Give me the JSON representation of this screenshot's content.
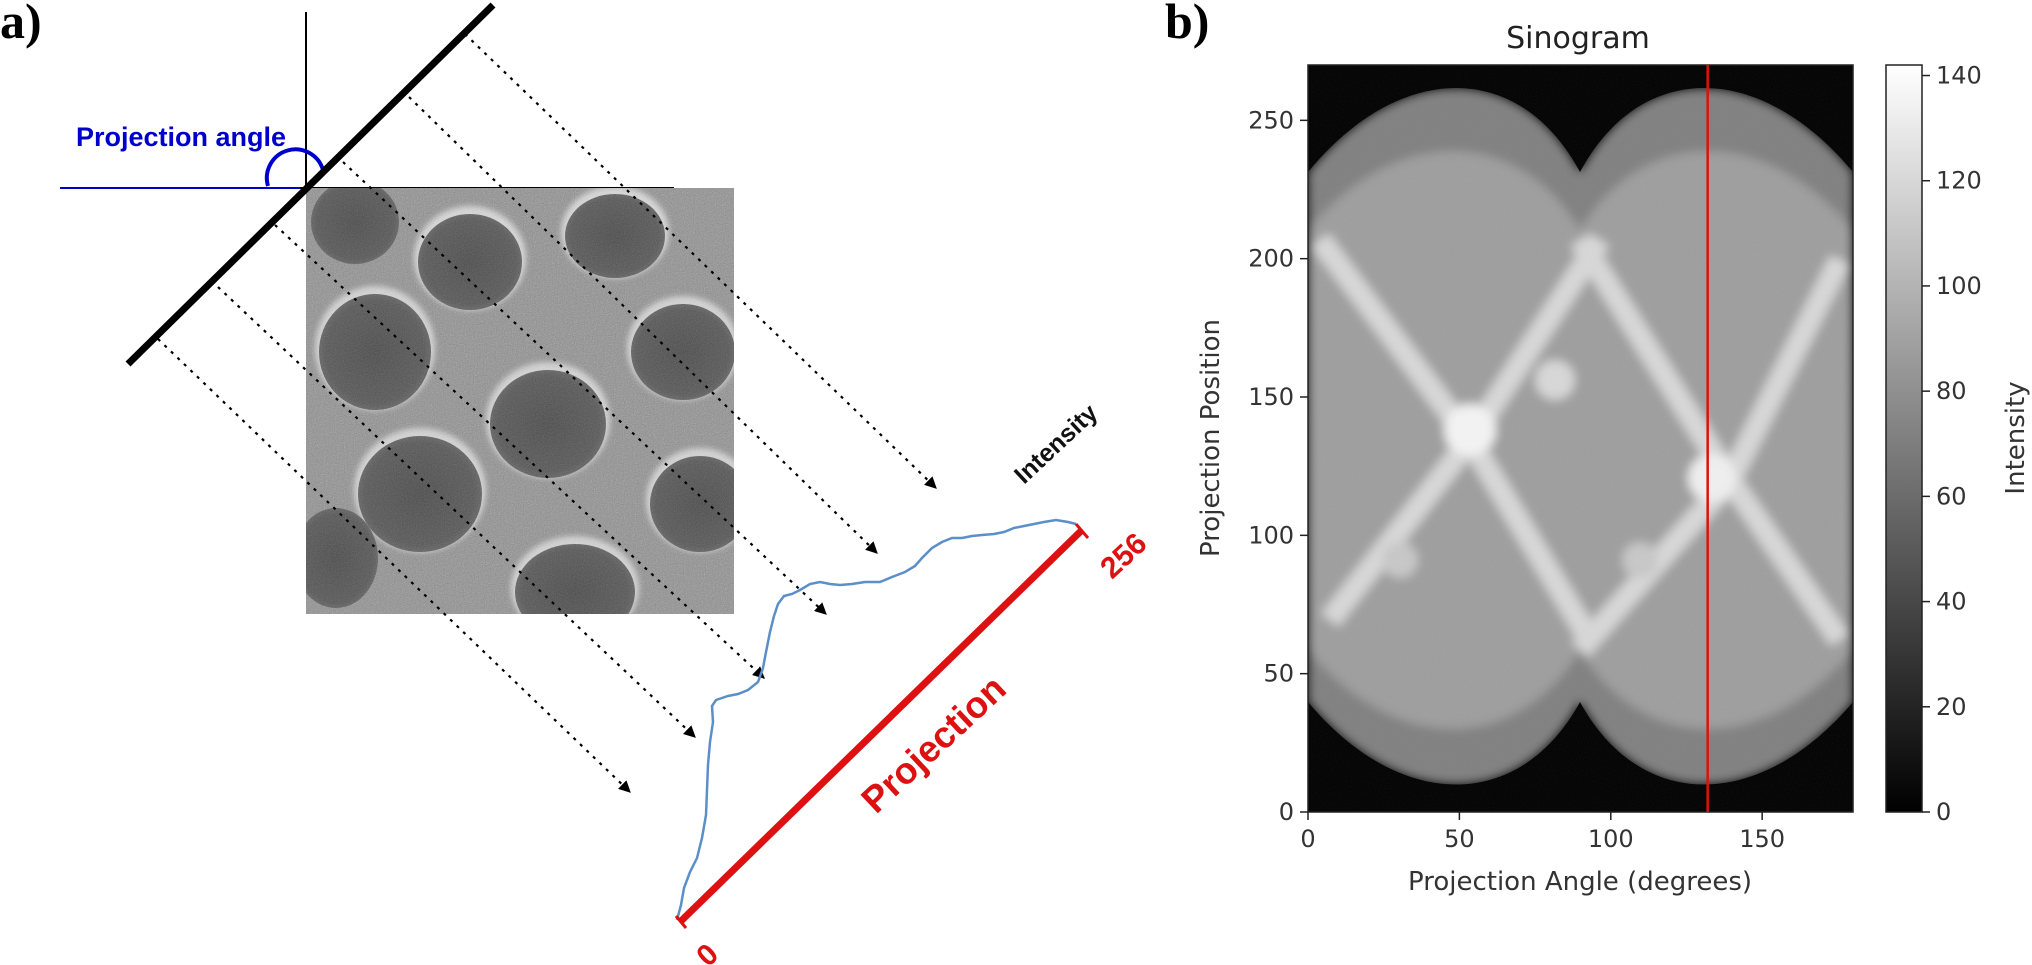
{
  "panel_a": {
    "label": "a)",
    "projection_angle_label": "Projection angle",
    "intensity_label": "Intensity",
    "projection_label": "Projection",
    "projection_start": "0",
    "projection_end": "256"
  },
  "panel_b": {
    "label": "b)"
  },
  "chart_data": {
    "type": "heatmap",
    "title": "Sinogram",
    "xlabel": "Projection Angle (degrees)",
    "ylabel": "Projection Position",
    "xlim": [
      0,
      180
    ],
    "ylim": [
      0,
      270
    ],
    "xticks": [
      "0",
      "50",
      "100",
      "150"
    ],
    "xtick_values": [
      0,
      50,
      100,
      150
    ],
    "yticks": [
      "0",
      "50",
      "100",
      "150",
      "200",
      "250"
    ],
    "ytick_values": [
      0,
      50,
      100,
      150,
      200,
      250
    ],
    "colormap": "gray",
    "colorbar": {
      "label": "Intensity",
      "ticks": [
        "0",
        "20",
        "40",
        "60",
        "80",
        "100",
        "120",
        "140"
      ],
      "tick_values": [
        0,
        20,
        40,
        60,
        80,
        100,
        120,
        140
      ],
      "range": [
        0,
        142
      ]
    },
    "marker_line": {
      "angle": 132,
      "color": "#dd1111"
    },
    "grid": false
  }
}
